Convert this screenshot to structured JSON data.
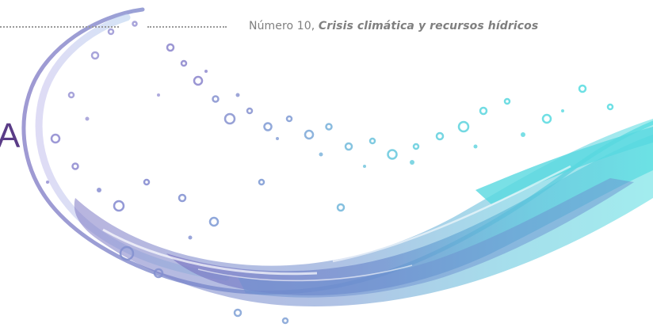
{
  "header": {
    "issue_label": "Número 10, ",
    "issue_topic": "Crisis climática y recursos hídricos"
  },
  "edge_text": "A",
  "colors": {
    "splash_violet": "#7e7bc6",
    "splash_blue": "#6f9fd6",
    "splash_cyan": "#5fd2df",
    "title_purple": "#5a3c87",
    "header_grey": "#7f7f7f"
  },
  "illustration": {
    "name": "water-splash",
    "description_icon": "water-splash-icon"
  }
}
